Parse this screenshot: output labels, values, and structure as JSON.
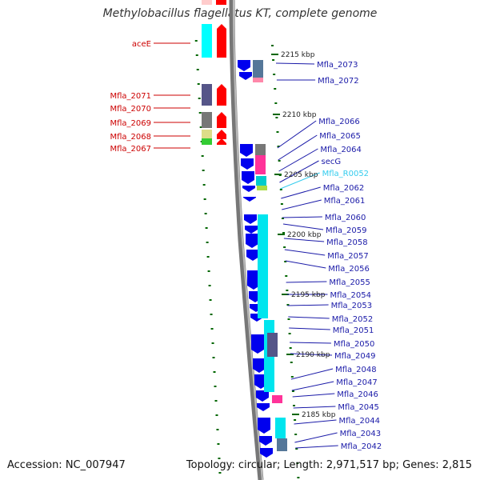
{
  "title": "Methylobacillus flagellatus KT, complete genome",
  "footer": {
    "accession": "Accession: NC_007947",
    "topology": "Topology: circular; Length: 2,971,517 bp; Genes: 2,815"
  },
  "colors": {
    "backbone": "#777777",
    "forward_cds": "#ff0000",
    "reverse_cds": "#0000ee",
    "gene_block": "#00e5ee",
    "left_label": "#cc0000",
    "right_label": "#1a1aa8",
    "rna_label": "#33ccee",
    "tick": "#006600"
  },
  "scale_labels": [
    "2215 kbp",
    "2210 kbp",
    "2205 kbp",
    "2200 kbp",
    "2195 kbp",
    "2190 kbp",
    "2185 kbp"
  ],
  "left_genes": [
    "aceE",
    "Mfla_2071",
    "Mfla_2070",
    "Mfla_2069",
    "Mfla_2068",
    "Mfla_2067"
  ],
  "right_genes": [
    "Mfla_2073",
    "Mfla_2072",
    "Mfla_2066",
    "Mfla_2065",
    "Mfla_2064",
    "secG",
    "Mfla_R0052",
    "Mfla_2062",
    "Mfla_2061",
    "Mfla_2060",
    "Mfla_2059",
    "Mfla_2058",
    "Mfla_2057",
    "Mfla_2056",
    "Mfla_2055",
    "Mfla_2054",
    "Mfla_2053",
    "Mfla_2052",
    "Mfla_2051",
    "Mfla_2050",
    "Mfla_2049",
    "Mfla_2048",
    "Mfla_2047",
    "Mfla_2046",
    "Mfla_2045",
    "Mfla_2044",
    "Mfla_2043",
    "Mfla_2042"
  ]
}
